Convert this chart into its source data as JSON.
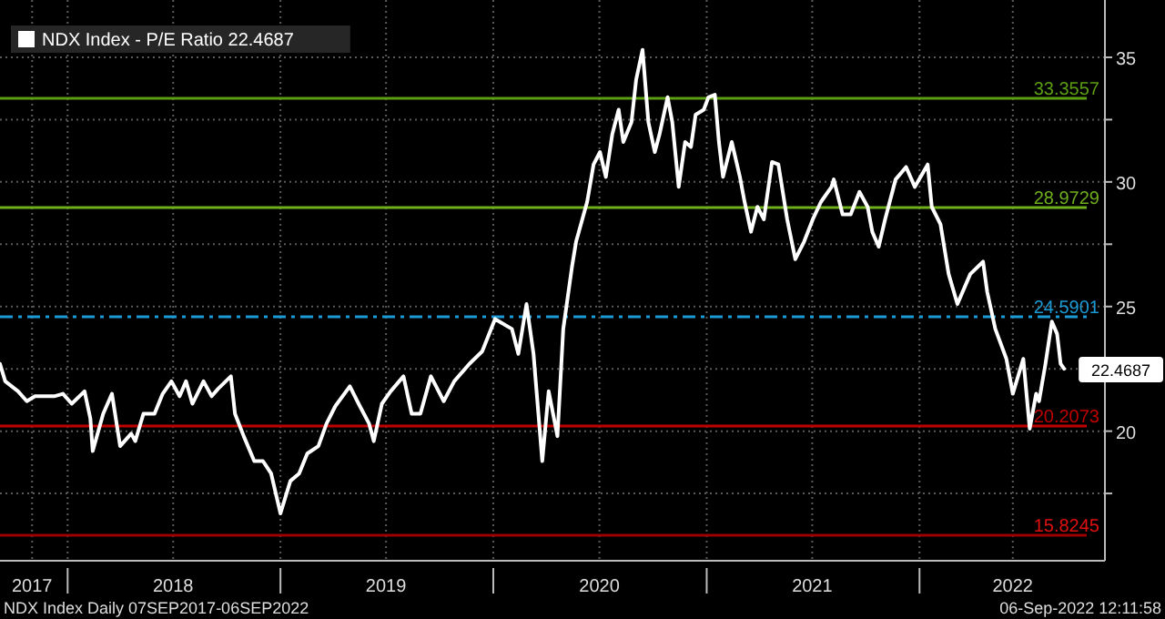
{
  "chart_data": {
    "type": "line",
    "x": [
      "2017-09-07",
      "2017-09-16",
      "2017-10-08",
      "2017-10-23",
      "2017-11-06",
      "2017-12-09",
      "2017-12-24",
      "2018-01-08",
      "2018-01-30",
      "2018-02-09",
      "2018-02-13",
      "2018-03-03",
      "2018-03-18",
      "2018-04-01",
      "2018-04-20",
      "2018-04-27",
      "2018-05-11",
      "2018-05-30",
      "2018-06-13",
      "2018-06-28",
      "2018-07-12",
      "2018-07-23",
      "2018-08-03",
      "2018-08-22",
      "2018-09-05",
      "2018-09-16",
      "2018-10-08",
      "2018-10-15",
      "2018-10-30",
      "2018-11-17",
      "2018-12-02",
      "2018-12-16",
      "2019-01-01",
      "2019-01-18",
      "2019-02-02",
      "2019-02-16",
      "2019-03-07",
      "2019-03-21",
      "2019-04-05",
      "2019-04-30",
      "2019-05-15",
      "2019-06-02",
      "2019-06-10",
      "2019-06-24",
      "2019-07-09",
      "2019-07-31",
      "2019-08-14",
      "2019-08-29",
      "2019-09-16",
      "2019-10-08",
      "2019-10-26",
      "2019-11-21",
      "2019-12-13",
      "2020-01-04",
      "2020-02-02",
      "2020-02-13",
      "2020-02-27",
      "2020-03-10",
      "2020-03-25",
      "2020-04-05",
      "2020-04-20",
      "2020-04-30",
      "2020-05-15",
      "2020-05-22",
      "2020-06-10",
      "2020-06-21",
      "2020-07-02",
      "2020-07-12",
      "2020-07-23",
      "2020-08-03",
      "2020-08-11",
      "2020-08-25",
      "2020-09-02",
      "2020-09-13",
      "2020-09-23",
      "2020-10-04",
      "2020-10-12",
      "2020-10-26",
      "2020-11-03",
      "2020-11-14",
      "2020-11-25",
      "2020-12-05",
      "2020-12-13",
      "2020-12-27",
      "2021-01-04",
      "2021-01-15",
      "2021-01-22",
      "2021-01-29",
      "2021-02-13",
      "2021-02-27",
      "2021-03-07",
      "2021-03-18",
      "2021-03-29",
      "2021-04-09",
      "2021-04-23",
      "2021-05-04",
      "2021-05-19",
      "2021-06-02",
      "2021-06-17",
      "2021-07-02",
      "2021-07-16",
      "2021-08-03",
      "2021-08-07",
      "2021-08-22",
      "2021-09-05",
      "2021-09-20",
      "2021-10-04",
      "2021-10-12",
      "2021-10-23",
      "2021-11-03",
      "2021-11-21",
      "2021-12-09",
      "2021-12-24",
      "2022-01-15",
      "2022-01-22",
      "2022-02-06",
      "2022-02-20",
      "2022-03-07",
      "2022-03-29",
      "2022-04-20",
      "2022-04-27",
      "2022-05-11",
      "2022-05-30",
      "2022-06-10",
      "2022-06-28",
      "2022-07-09",
      "2022-07-20",
      "2022-07-25",
      "2022-08-05",
      "2022-08-16",
      "2022-08-25",
      "2022-08-31",
      "2022-09-06"
    ],
    "series": [
      {
        "name": "NDX Index - P/E Ratio 22.4687",
        "color": "#ffffff",
        "values": [
          22.7,
          22.0,
          21.6,
          21.2,
          21.4,
          21.4,
          21.5,
          21.1,
          21.6,
          20.5,
          19.2,
          20.7,
          21.5,
          19.4,
          19.9,
          19.6,
          20.7,
          20.7,
          21.5,
          22.0,
          21.4,
          22.0,
          21.1,
          22.0,
          21.4,
          21.7,
          22.2,
          20.7,
          19.8,
          18.8,
          18.8,
          18.3,
          16.7,
          18.0,
          18.3,
          19.1,
          19.4,
          20.3,
          21.0,
          21.8,
          21.1,
          20.3,
          19.6,
          21.1,
          21.6,
          22.2,
          20.7,
          20.7,
          22.2,
          21.2,
          22.0,
          22.7,
          23.2,
          24.5,
          24.1,
          23.1,
          25.1,
          23.1,
          18.8,
          21.6,
          19.8,
          24.1,
          26.6,
          27.6,
          29.2,
          30.7,
          31.2,
          30.2,
          31.9,
          32.9,
          31.6,
          32.4,
          34.1,
          35.3,
          32.4,
          31.2,
          31.9,
          33.4,
          32.4,
          29.8,
          31.6,
          31.4,
          32.7,
          32.9,
          33.4,
          33.5,
          31.6,
          30.2,
          31.6,
          30.2,
          29.2,
          28.0,
          29.0,
          28.5,
          30.8,
          30.7,
          28.5,
          26.9,
          27.6,
          28.5,
          29.2,
          29.8,
          30.1,
          28.7,
          28.7,
          29.6,
          29.0,
          28.0,
          27.4,
          28.5,
          30.1,
          30.6,
          29.8,
          30.7,
          29.0,
          28.3,
          26.3,
          25.1,
          26.3,
          26.8,
          25.6,
          24.1,
          22.9,
          21.5,
          22.9,
          20.1,
          21.5,
          21.2,
          22.7,
          24.4,
          23.9,
          22.7,
          22.5
        ]
      }
    ],
    "xlim": [
      "2017-09-07",
      "2022-11-15"
    ],
    "xticks": [
      {
        "value": "2017-11-01",
        "label": "2017"
      },
      {
        "value": "2018-01-01",
        "label": null
      },
      {
        "value": "2018-07-01",
        "label": "2018"
      },
      {
        "value": "2019-01-01",
        "label": null
      },
      {
        "value": "2019-07-01",
        "label": "2019"
      },
      {
        "value": "2020-01-01",
        "label": null
      },
      {
        "value": "2020-07-01",
        "label": "2020"
      },
      {
        "value": "2021-01-01",
        "label": null
      },
      {
        "value": "2021-07-01",
        "label": "2021"
      },
      {
        "value": "2022-01-01",
        "label": null
      },
      {
        "value": "2022-06-10",
        "label": "2022"
      }
    ],
    "ylim": [
      14.8,
      37.3
    ],
    "yticks": [
      {
        "value": 17.5,
        "label": null
      },
      20,
      {
        "value": 22.5,
        "label": null
      },
      25,
      {
        "value": 27.5,
        "label": null
      },
      30,
      {
        "value": 32.5,
        "label": null
      },
      35
    ],
    "grid": true,
    "legend": "top left",
    "ref_lines": [
      {
        "axis": "y",
        "value": 33.3557,
        "label": "33.3557",
        "color": "#5c9e12",
        "line_style": "solid"
      },
      {
        "axis": "y",
        "value": 28.9729,
        "label": "28.9729",
        "color": "#6fae1c",
        "line_style": "solid"
      },
      {
        "axis": "y",
        "value": 24.5901,
        "label": "24.5901",
        "color": "#1c9ad6",
        "line_style": "dashed"
      },
      {
        "axis": "y",
        "value": 20.2073,
        "label": "20.2073",
        "color": "#c00000",
        "line_style": "solid"
      },
      {
        "axis": "y",
        "value": 15.8245,
        "label": "15.8245",
        "color": "#9c0000",
        "line_style": "solid"
      }
    ],
    "annotations": [
      {
        "text": "22.4687",
        "x": "2022-09-06",
        "y": 22.4687
      },
      "NDX Index  Daily 07SEP2017-06SEP2022",
      "06-Sep-2022 12:11:58"
    ]
  }
}
